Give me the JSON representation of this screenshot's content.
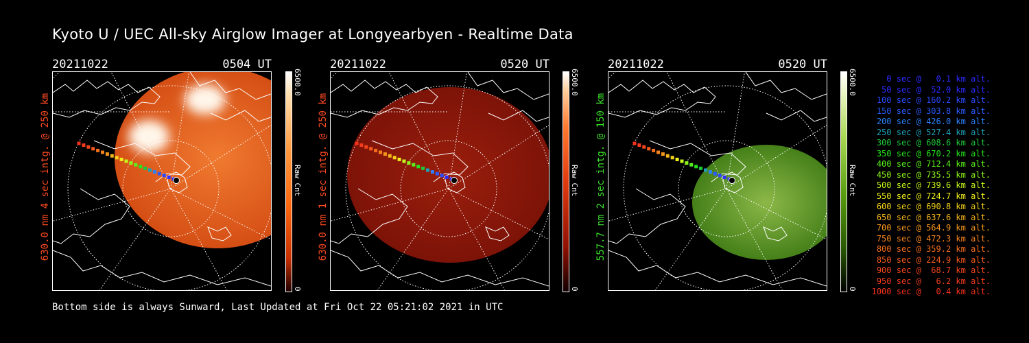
{
  "title": "Kyoto U / UEC All-sky Airglow Imager at Longyearbyen - Realtime Data",
  "panels": [
    {
      "date": "20211022",
      "time": "0504 UT",
      "ylabel": "630.0 nm 4 sec intg. @ 250 km",
      "label_color": "#ff4a22",
      "cbar_max": "6500.0",
      "cbar_min": "0",
      "cbar_label": "Raw Cnt",
      "palette": "orange",
      "ellipse": [
        240,
        125,
        150,
        132
      ],
      "spots": [
        [
          222,
          40,
          30,
          22
        ],
        [
          140,
          94,
          30,
          24
        ]
      ]
    },
    {
      "date": "20211022",
      "time": "0520 UT",
      "ylabel": "630.0 nm 1 sec intg. @ 250 km",
      "label_color": "#ff4a22",
      "cbar_max": "6500.0",
      "cbar_min": "0",
      "cbar_label": "Raw Cnt",
      "palette": "red",
      "ellipse": [
        174,
        150,
        150,
        128
      ],
      "spots": []
    },
    {
      "date": "20211022",
      "time": "0520 UT",
      "ylabel": "557.7 nm 2 sec intg. @ 150 km",
      "label_color": "#3adf2a",
      "cbar_max": "6500.0",
      "cbar_min": "0",
      "cbar_label": "Raw Cnt",
      "palette": "green",
      "ellipse": [
        230,
        190,
        108,
        84
      ],
      "spots": []
    }
  ],
  "legend": [
    {
      "text": "0 sec @   0.1 km alt.",
      "color": "#2b2bff"
    },
    {
      "text": "50 sec @  52.0 km alt.",
      "color": "#2b2bff"
    },
    {
      "text": "100 sec @ 160.2 km alt.",
      "color": "#2b4bff"
    },
    {
      "text": "150 sec @ 303.8 km alt.",
      "color": "#2b5bff"
    },
    {
      "text": "200 sec @ 426.0 km alt.",
      "color": "#2b82ff"
    },
    {
      "text": "250 sec @ 527.4 km alt.",
      "color": "#1fa0b8"
    },
    {
      "text": "300 sec @ 608.6 km alt.",
      "color": "#1fc83a"
    },
    {
      "text": "350 sec @ 670.2 km alt.",
      "color": "#27e51c"
    },
    {
      "text": "400 sec @ 712.4 km alt.",
      "color": "#5af01c"
    },
    {
      "text": "450 sec @ 735.5 km alt.",
      "color": "#8cf51c"
    },
    {
      "text": "500 sec @ 739.6 km alt.",
      "color": "#c4f51c"
    },
    {
      "text": "550 sec @ 724.7 km alt.",
      "color": "#f0f01c"
    },
    {
      "text": "600 sec @ 690.8 km alt.",
      "color": "#f5d21c"
    },
    {
      "text": "650 sec @ 637.6 km alt.",
      "color": "#f5b41c"
    },
    {
      "text": "700 sec @ 564.9 km alt.",
      "color": "#f5961c"
    },
    {
      "text": "750 sec @ 472.3 km alt.",
      "color": "#f5821c"
    },
    {
      "text": "800 sec @ 359.2 km alt.",
      "color": "#f56e1c"
    },
    {
      "text": "850 sec @ 224.9 km alt.",
      "color": "#f55a1c"
    },
    {
      "text": "900 sec @  68.7 km alt.",
      "color": "#f5461c"
    },
    {
      "text": "950 sec @   6.2 km alt.",
      "color": "#f53c1c"
    },
    {
      "text": "1000 sec @   0.4 km alt.",
      "color": "#f5321c"
    }
  ],
  "footer": "Bottom side is always Sunward, Last Updated at Fri Oct 22 05:21:02 2021 in UTC"
}
